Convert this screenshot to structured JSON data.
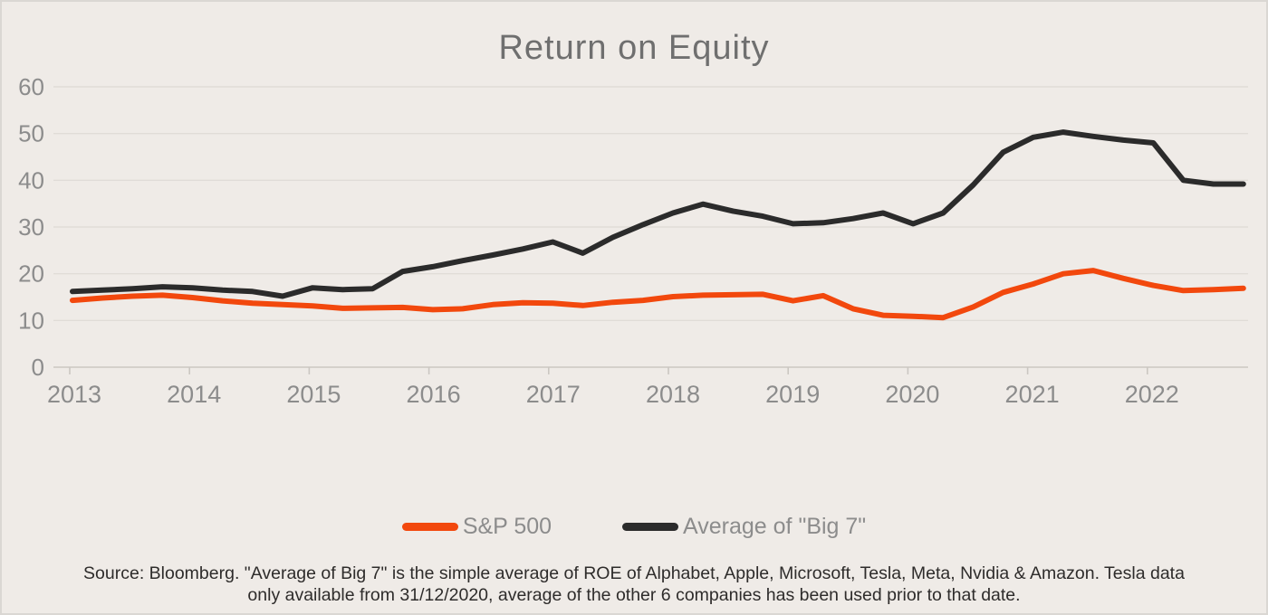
{
  "title": "Return on Equity",
  "legend": {
    "items": [
      {
        "label": "S&P 500",
        "color": "#F2480D"
      },
      {
        "label": "Average of \"Big 7\"",
        "color": "#2B2B2B"
      }
    ]
  },
  "source": {
    "line1": "Source: Bloomberg. \"Average of Big 7\" is the simple average of ROE of Alphabet, Apple, Microsoft, Tesla, Meta, Nvidia & Amazon. Tesla data",
    "line2": "only available from 31/12/2020, average of the other 6 companies has been used prior to that date."
  },
  "chart_data": {
    "type": "line",
    "title": "Return on Equity",
    "xlabel": "",
    "ylabel": "",
    "ylim": [
      0,
      60
    ],
    "yticks": [
      0,
      10,
      20,
      30,
      40,
      50,
      60
    ],
    "xticks": [
      2013,
      2014,
      2015,
      2016,
      2017,
      2018,
      2019,
      2020,
      2021,
      2022
    ],
    "grid": true,
    "legend_position": "bottom",
    "x": [
      2013.0,
      2013.25,
      2013.5,
      2013.75,
      2014.0,
      2014.25,
      2014.5,
      2014.75,
      2015.0,
      2015.25,
      2015.5,
      2015.75,
      2016.0,
      2016.25,
      2016.5,
      2016.75,
      2017.0,
      2017.25,
      2017.5,
      2017.75,
      2018.0,
      2018.25,
      2018.5,
      2018.75,
      2019.0,
      2019.25,
      2019.5,
      2019.75,
      2020.0,
      2020.25,
      2020.5,
      2020.75,
      2021.0,
      2021.25,
      2021.5,
      2021.75,
      2022.0,
      2022.25,
      2022.5,
      2022.75
    ],
    "series": [
      {
        "name": "S&P 500",
        "color": "#F2480D",
        "values": [
          14.3,
          14.8,
          15.2,
          15.4,
          14.9,
          14.2,
          13.7,
          13.4,
          13.1,
          12.6,
          12.7,
          12.8,
          12.3,
          12.5,
          13.4,
          13.8,
          13.7,
          13.2,
          13.9,
          14.3,
          15.1,
          15.4,
          15.5,
          15.6,
          14.2,
          15.3,
          12.5,
          11.1,
          10.9,
          10.6,
          12.9,
          16.0,
          17.8,
          20.0,
          20.7,
          19.0,
          17.5,
          16.4,
          16.6,
          16.9
        ]
      },
      {
        "name": "Average of \"Big 7\"",
        "color": "#2B2B2B",
        "values": [
          16.2,
          16.5,
          16.8,
          17.2,
          17.0,
          16.5,
          16.2,
          15.2,
          17.0,
          16.6,
          16.8,
          20.5,
          21.5,
          22.8,
          24.0,
          25.3,
          26.8,
          24.4,
          27.8,
          30.5,
          33.0,
          34.9,
          33.4,
          32.3,
          30.7,
          30.9,
          31.8,
          33.0,
          30.7,
          33.0,
          39.0,
          46.0,
          49.2,
          50.3,
          49.4,
          48.6,
          48.0,
          40.0,
          39.2,
          39.2
        ]
      }
    ]
  },
  "colors": {
    "background": "#EFEBE7",
    "gridline": "#E0DCD7",
    "axis": "#CBC7C2",
    "tick_label": "#8C8C8C",
    "title_text": "#6F6F6F",
    "source_text": "#2E2C2B",
    "sp500_line": "#F2480D",
    "big7_line": "#2B2B2B"
  }
}
